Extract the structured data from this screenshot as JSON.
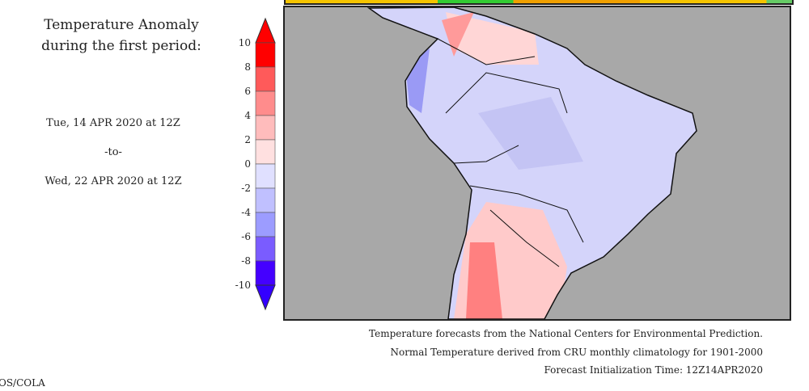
{
  "title": "Temperature Anomaly during the first period:",
  "period": {
    "start": "Tue, 14 APR 2020 at 12Z",
    "separator": "-to-",
    "end": "Wed, 22 APR 2020 at 12Z"
  },
  "colorbar": {
    "ticks": [
      "10",
      "8",
      "6",
      "4",
      "2",
      "0",
      "-2",
      "-4",
      "-6",
      "-8",
      "-10"
    ],
    "colors": [
      "#ff0000",
      "#ff5a5a",
      "#ff8c8c",
      "#ffbcbc",
      "#ffe0e0",
      "#e0e0ff",
      "#c0c0ff",
      "#9c9cff",
      "#7a5cff",
      "#4400ff"
    ],
    "over_color": "#ff0000",
    "under_color": "#3300ff"
  },
  "footer": {
    "line1": "Temperature forecasts from the National Centers for Environmental Prediction.",
    "line2": "Normal Temperature derived from CRU monthly climatology for 1901-2000",
    "line3": "Forecast Initialization Time: 12Z14APR2020",
    "credit": "OS/COLA"
  },
  "map": {
    "ocean_color": "#a8a8a8",
    "region": "South America"
  }
}
